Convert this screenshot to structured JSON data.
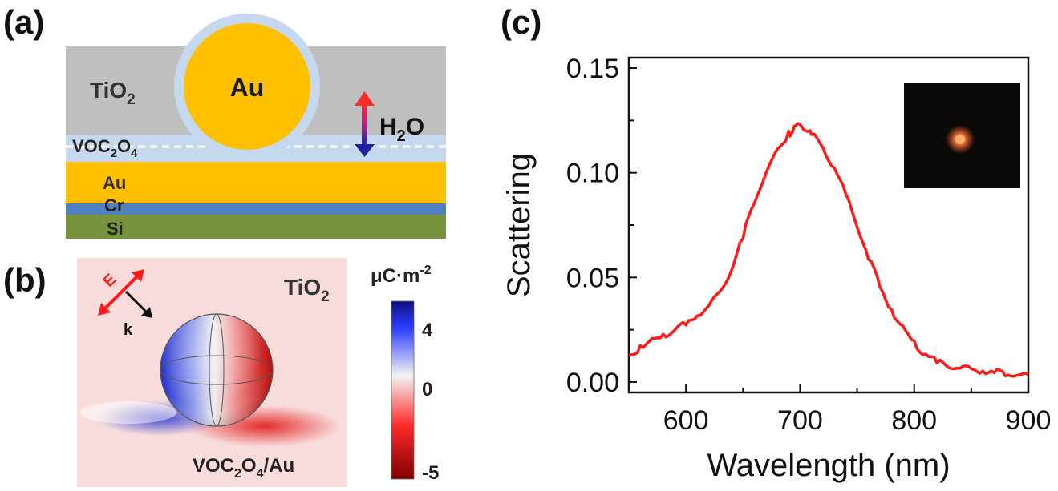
{
  "panels": {
    "a": {
      "label": "(a)",
      "tio2": "TiO",
      "tio2_sub": "2",
      "particle": "Au",
      "water": "H",
      "water_sub": "2",
      "water_tail": "O",
      "voc_main": "VOC",
      "voc_sub1": "2",
      "voc_mid": "O",
      "voc_sub2": "4",
      "layers": [
        "Au",
        "Cr",
        "Si"
      ],
      "colors": {
        "tio2": "#bfbfbf",
        "gold": "#ffc000",
        "shell": "#c5d8ee",
        "cr": "#4f81bd",
        "si": "#77933c"
      }
    },
    "b": {
      "label": "(b)",
      "tio2": "TiO",
      "tio2_sub": "2",
      "e_label": "E",
      "k_label": "k",
      "substrate_main": "VOC",
      "substrate_sub1": "2",
      "substrate_mid": "O",
      "substrate_sub2": "4",
      "substrate_tail": "/Au",
      "colorbar_unit_main": "μC·m",
      "colorbar_unit_sup": "-2",
      "colorbar_ticks": [
        "4",
        "0",
        "-5"
      ],
      "colors": {
        "positive": "#1f2fd0",
        "zero": "#f2f2f2",
        "negative": "#c00000"
      }
    },
    "c": {
      "label": "(c)",
      "chart_data": {
        "type": "line",
        "xlabel": "Wavelength (nm)",
        "ylabel": "Scattering",
        "xlim": [
          550,
          900
        ],
        "ylim": [
          -0.005,
          0.155
        ],
        "x_ticks": [
          "600",
          "700",
          "800",
          "900"
        ],
        "y_ticks": [
          "0.00",
          "0.05",
          "0.10",
          "0.15"
        ],
        "line_color": "#ff1a1a",
        "series": [
          {
            "x": [
              550,
              560,
              570,
              580,
              590,
              600,
              610,
              620,
              630,
              640,
              650,
              660,
              670,
              680,
              690,
              695,
              700,
              705,
              710,
              720,
              730,
              740,
              750,
              760,
              770,
              780,
              790,
              800,
              810,
              820,
              830,
              840,
              850,
              860,
              870,
              880,
              890,
              900
            ],
            "y": [
              0.013,
              0.016,
              0.019,
              0.022,
              0.025,
              0.028,
              0.032,
              0.036,
              0.043,
              0.054,
              0.07,
              0.087,
              0.1,
              0.11,
              0.118,
              0.121,
              0.123,
              0.121,
              0.119,
              0.112,
              0.102,
              0.09,
              0.075,
              0.06,
              0.046,
              0.034,
              0.025,
              0.018,
              0.013,
              0.01,
              0.008,
              0.007,
              0.006,
              0.005,
              0.005,
              0.004,
              0.004,
              0.003
            ]
          }
        ]
      }
    }
  }
}
